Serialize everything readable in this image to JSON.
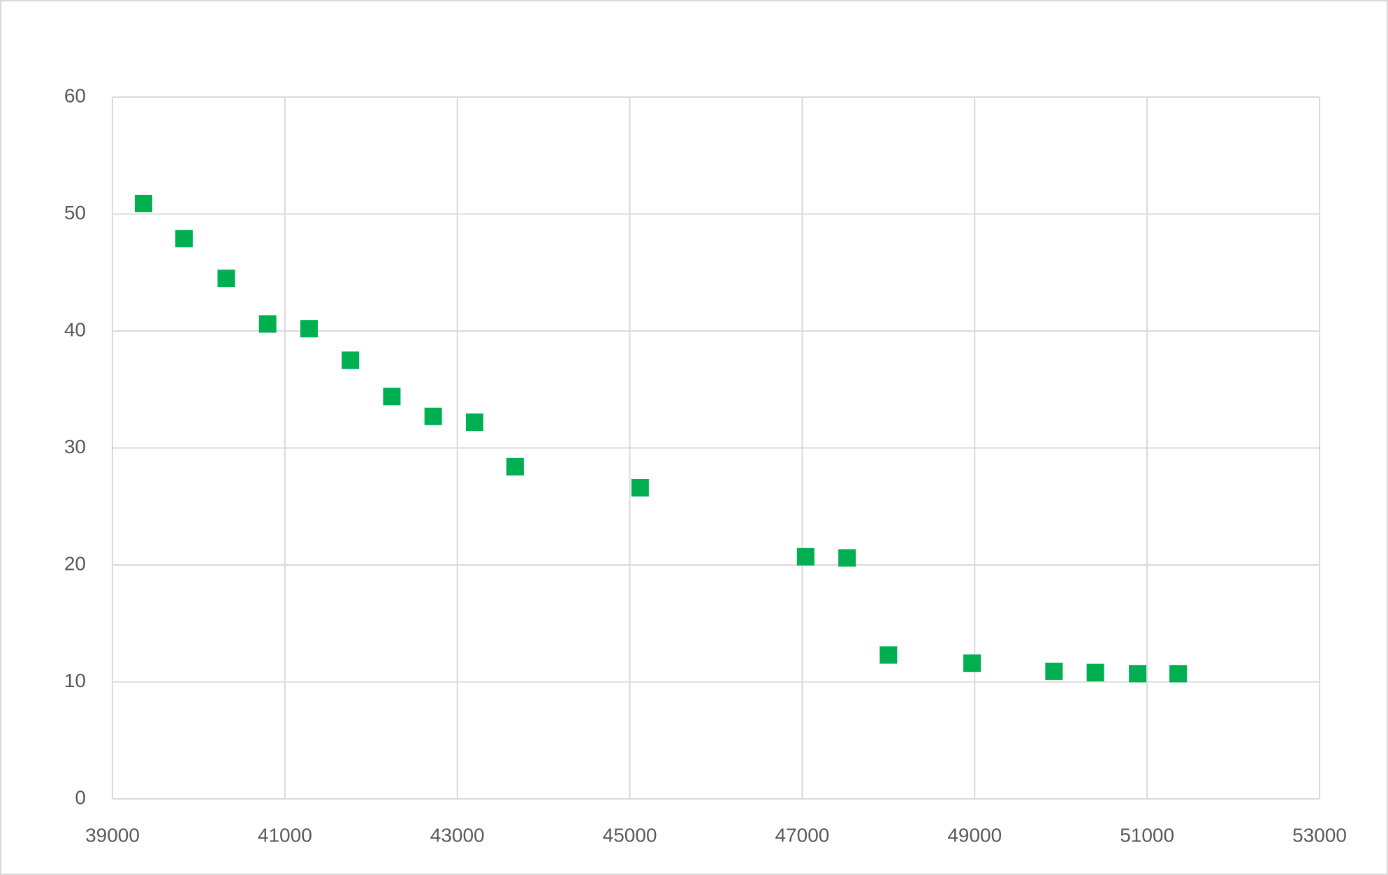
{
  "chart_data": {
    "type": "scatter",
    "series": [
      {
        "color": "#00b050",
        "x": [
          39360,
          39830,
          40320,
          40800,
          41280,
          41760,
          42240,
          42720,
          43200,
          43670,
          45120,
          47040,
          47520,
          48000,
          48970,
          49920,
          50400,
          50890,
          51360
        ],
        "values": [
          50.9,
          47.9,
          44.5,
          40.6,
          40.2,
          37.5,
          34.4,
          32.7,
          32.2,
          28.4,
          26.6,
          20.7,
          20.6,
          12.3,
          11.6,
          10.9,
          10.8,
          10.7,
          10.7
        ]
      }
    ],
    "xlim": [
      39000,
      53000
    ],
    "xticks": [
      39000,
      41000,
      43000,
      45000,
      47000,
      49000,
      51000,
      53000
    ],
    "ylim": [
      0,
      60
    ],
    "yticks": [
      0,
      10,
      20,
      30,
      40,
      50,
      60
    ],
    "grid": true
  }
}
